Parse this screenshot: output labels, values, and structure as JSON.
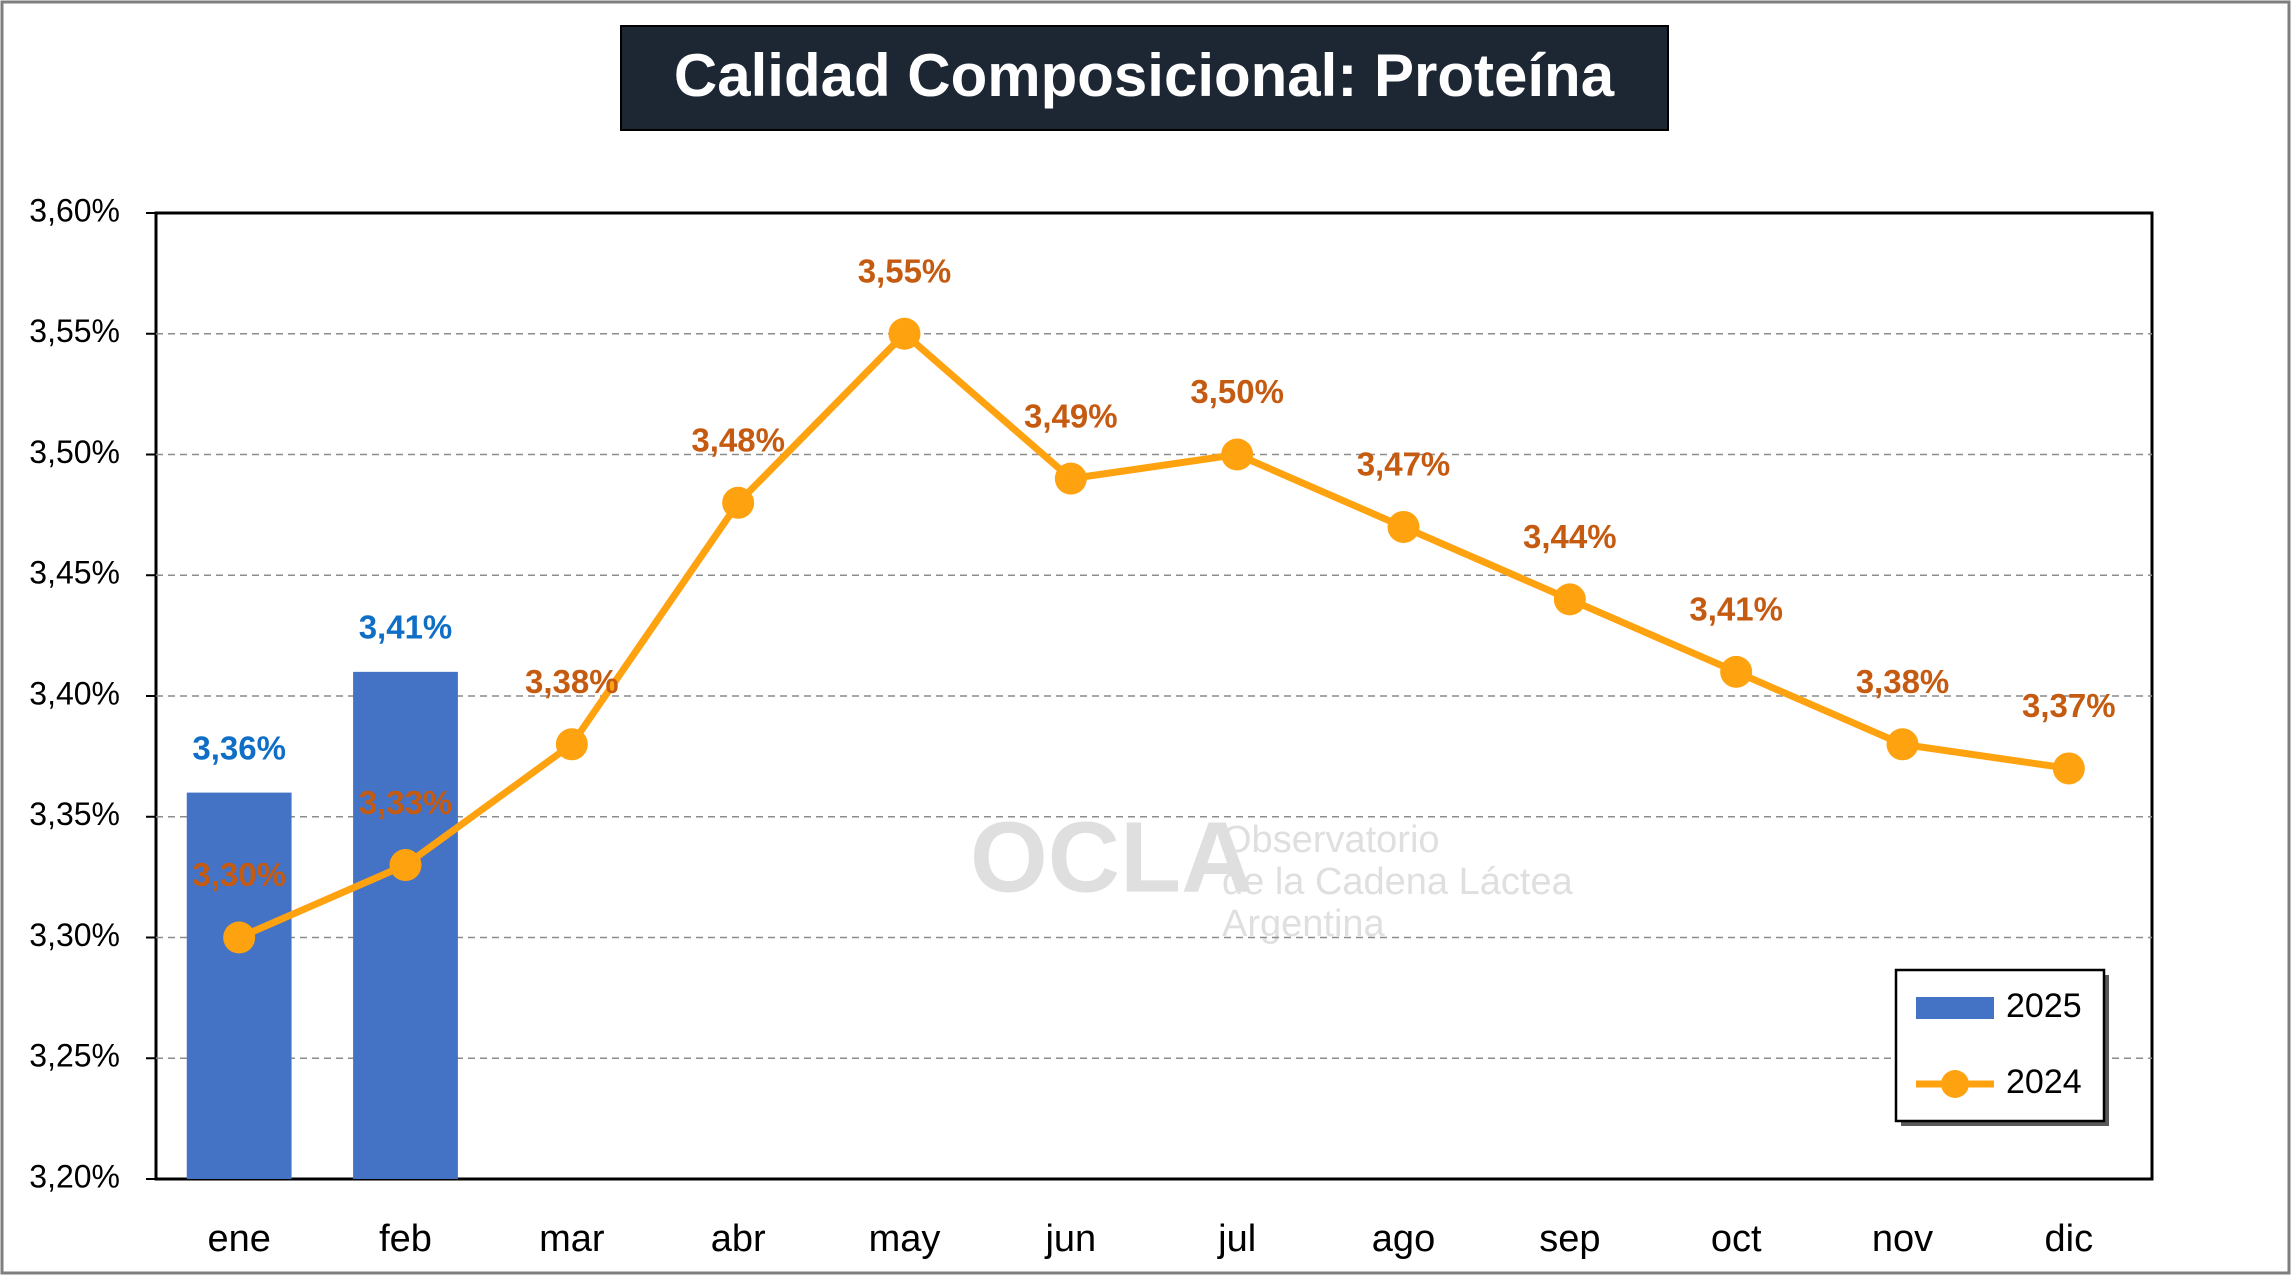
{
  "chart_data": {
    "type": "bar",
    "title": "Calidad Composicional: Proteína",
    "categories": [
      "ene",
      "feb",
      "mar",
      "abr",
      "may",
      "jun",
      "jul",
      "ago",
      "sep",
      "oct",
      "nov",
      "dic"
    ],
    "series": [
      {
        "name": "2025",
        "type": "bar",
        "color": "#4472c4",
        "label_color": "#0f6fc6",
        "values": [
          3.36,
          3.41,
          null,
          null,
          null,
          null,
          null,
          null,
          null,
          null,
          null,
          null
        ],
        "value_labels": [
          "3,36%",
          "3,41%",
          null,
          null,
          null,
          null,
          null,
          null,
          null,
          null,
          null,
          null
        ]
      },
      {
        "name": "2024",
        "type": "line",
        "color": "#ffa20f",
        "label_color": "#c55a11",
        "values": [
          3.3,
          3.33,
          3.38,
          3.48,
          3.55,
          3.49,
          3.5,
          3.47,
          3.44,
          3.41,
          3.38,
          3.37
        ],
        "value_labels": [
          "3,30%",
          "3,33%",
          "3,38%",
          "3,48%",
          "3,55%",
          "3,49%",
          "3,50%",
          "3,47%",
          "3,44%",
          "3,41%",
          "3,38%",
          "3,37%"
        ]
      }
    ],
    "ylim": [
      3.2,
      3.6
    ],
    "yticks": [
      {
        "value": 3.2,
        "label": "3,20%"
      },
      {
        "value": 3.25,
        "label": "3,25%"
      },
      {
        "value": 3.3,
        "label": "3,30%"
      },
      {
        "value": 3.35,
        "label": "3,35%"
      },
      {
        "value": 3.4,
        "label": "3,40%"
      },
      {
        "value": 3.45,
        "label": "3,45%"
      },
      {
        "value": 3.5,
        "label": "3,50%"
      },
      {
        "value": 3.55,
        "label": "3,55%"
      },
      {
        "value": 3.6,
        "label": "3,60%"
      }
    ],
    "grid": true,
    "legend": "bottom-right",
    "watermark": {
      "logo": "OCLA",
      "lines": [
        "Observatorio",
        "de la Cadena Láctea",
        "Argentina"
      ]
    }
  }
}
